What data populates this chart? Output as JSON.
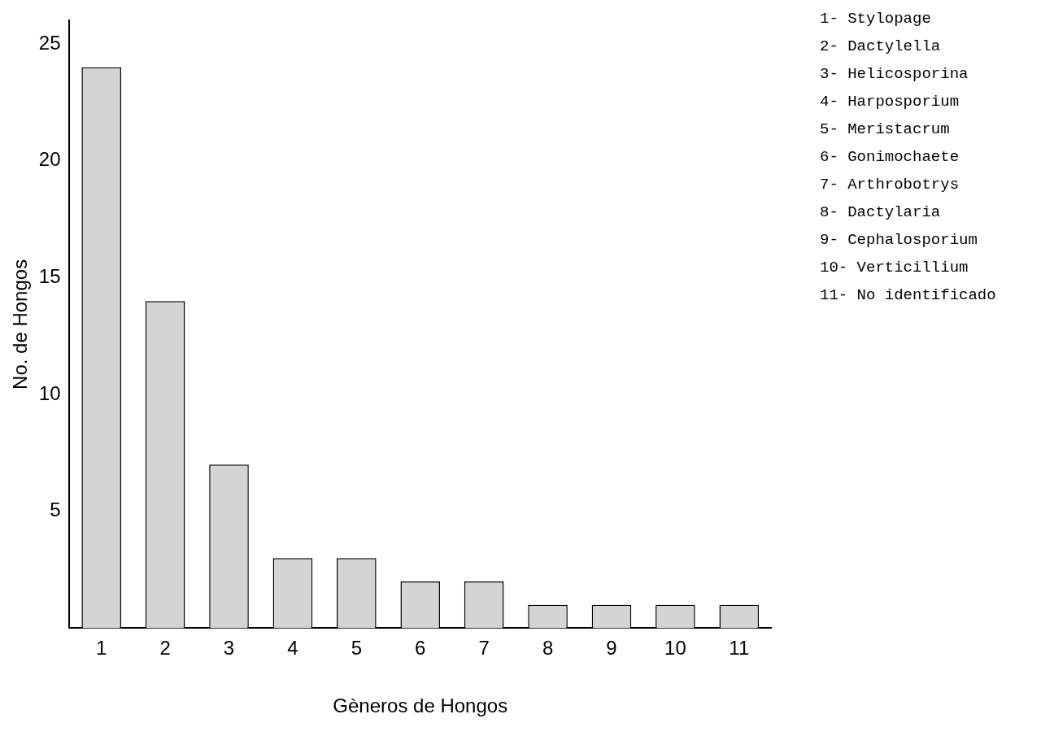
{
  "chart_data": {
    "type": "bar",
    "xlabel": "Gèneros de Hongos",
    "ylabel": "No. de Hongos",
    "categories": [
      "1",
      "2",
      "3",
      "4",
      "5",
      "6",
      "7",
      "8",
      "9",
      "10",
      "11"
    ],
    "values": [
      24,
      14,
      7,
      3,
      3,
      2,
      2,
      1,
      1,
      1,
      1
    ],
    "color": "#d4d4d4",
    "ylim": [
      0,
      26
    ],
    "yticks": [
      5,
      10,
      15,
      20,
      25
    ],
    "grid": false,
    "legend": false,
    "annotations": [
      "1- Stylopage",
      "2- Dactylella",
      "3- Helicosporina",
      "4- Harposporium",
      "5- Meristacrum",
      "6- Gonimochaete",
      "7- Arthrobotrys",
      "8- Dactylaria",
      "9- Cephalosporium",
      "10- Verticillium",
      "11- No identificado"
    ]
  }
}
